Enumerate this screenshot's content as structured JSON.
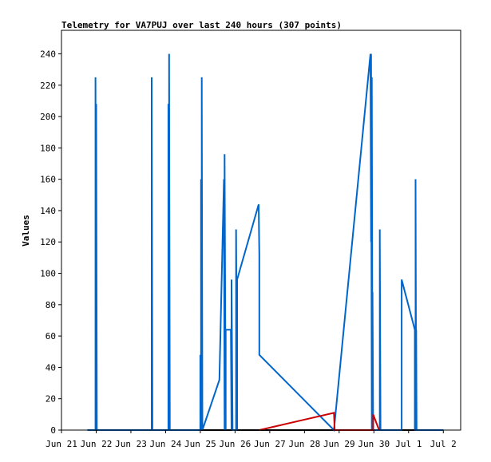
{
  "chart_data": {
    "type": "line",
    "title": "Telemetry for VA7PUJ over last 240 hours (307 points)",
    "xlabel": "",
    "ylabel": "Values",
    "xlim": [
      0,
      11.5
    ],
    "ylim": [
      0,
      255
    ],
    "x_ticks": [
      {
        "x": 0,
        "label": "Jun 21"
      },
      {
        "x": 1,
        "label": "Jun 22"
      },
      {
        "x": 2,
        "label": "Jun 23"
      },
      {
        "x": 3,
        "label": "Jun 24"
      },
      {
        "x": 4,
        "label": "Jun 25"
      },
      {
        "x": 5,
        "label": "Jun 26"
      },
      {
        "x": 6,
        "label": "Jun 27"
      },
      {
        "x": 7,
        "label": "Jun 28"
      },
      {
        "x": 8,
        "label": "Jun 29"
      },
      {
        "x": 9,
        "label": "Jun 30"
      },
      {
        "x": 10,
        "label": "Jul 1"
      },
      {
        "x": 11,
        "label": "Jul 2"
      }
    ],
    "y_ticks": [
      0,
      20,
      40,
      60,
      80,
      100,
      120,
      140,
      160,
      180,
      200,
      220,
      240
    ],
    "grid": false,
    "legend": "none",
    "series": [
      {
        "color": "#0066cc",
        "points": [
          [
            0.75,
            0
          ],
          [
            0.98,
            0
          ],
          [
            0.98,
            225
          ],
          [
            1.0,
            0
          ],
          [
            1.0,
            208
          ],
          [
            1.02,
            0
          ],
          [
            2.6,
            0
          ],
          [
            2.6,
            225
          ],
          [
            2.62,
            0
          ],
          [
            3.08,
            0
          ],
          [
            3.08,
            208
          ],
          [
            3.1,
            0
          ],
          [
            3.1,
            240
          ],
          [
            3.12,
            0
          ],
          [
            4.0,
            0
          ],
          [
            4.0,
            48
          ],
          [
            4.02,
            0
          ],
          [
            4.02,
            160
          ],
          [
            4.04,
            0
          ],
          [
            4.04,
            225
          ],
          [
            4.06,
            0
          ],
          [
            4.55,
            32
          ],
          [
            4.68,
            160
          ],
          [
            4.7,
            0
          ],
          [
            4.7,
            176
          ],
          [
            4.73,
            0
          ],
          [
            4.73,
            64
          ],
          [
            4.88,
            64
          ],
          [
            4.9,
            0
          ],
          [
            4.9,
            96
          ],
          [
            4.93,
            0
          ],
          [
            5.03,
            0
          ],
          [
            5.03,
            128
          ],
          [
            5.06,
            0
          ],
          [
            5.06,
            96
          ],
          [
            5.68,
            144
          ],
          [
            5.7,
            112
          ],
          [
            5.7,
            48
          ],
          [
            7.85,
            0
          ],
          [
            8.9,
            240
          ],
          [
            8.92,
            120
          ],
          [
            8.92,
            240
          ],
          [
            8.94,
            0
          ],
          [
            8.94,
            225
          ],
          [
            8.96,
            0
          ],
          [
            8.96,
            88
          ],
          [
            8.98,
            0
          ],
          [
            9.17,
            0
          ],
          [
            9.17,
            128
          ],
          [
            9.19,
            0
          ],
          [
            9.8,
            0
          ],
          [
            9.8,
            96
          ],
          [
            10.18,
            64
          ],
          [
            10.18,
            0
          ],
          [
            10.2,
            0
          ],
          [
            10.2,
            160
          ],
          [
            10.22,
            0
          ],
          [
            10.22,
            64
          ],
          [
            10.23,
            0
          ],
          [
            11.0,
            0
          ]
        ]
      },
      {
        "color": "#cc0000",
        "points": [
          [
            5.7,
            0
          ],
          [
            7.85,
            11
          ],
          [
            7.87,
            0
          ],
          [
            8.98,
            0
          ],
          [
            8.98,
            10
          ],
          [
            9.15,
            0
          ]
        ]
      }
    ]
  }
}
